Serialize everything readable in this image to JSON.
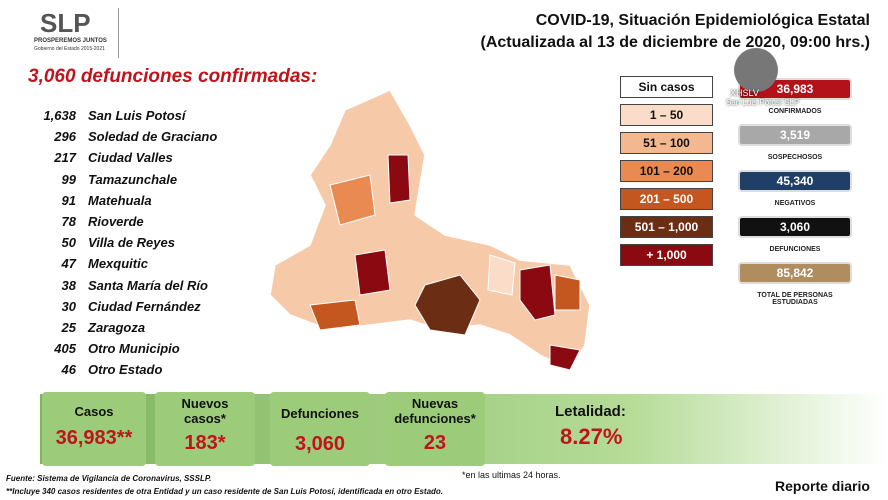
{
  "header": {
    "logo": "SLP",
    "motto": "PROSPEREMOS JUNTOS",
    "government": "Gobierno del Estado 2015-2021",
    "title": "COVID-19, Situación Epidemiológica Estatal",
    "subtitle": "(Actualizada al 13 de diciembre de 2020, 09:00 hrs.)"
  },
  "watermark": {
    "channel": "XHSLV",
    "place": "San Luis Potosí SLP"
  },
  "deaths": {
    "title": "3,060 defunciones confirmadas:",
    "rows": [
      [
        "1,638",
        "San Luis Potosí"
      ],
      [
        "296",
        "Soledad de Graciano"
      ],
      [
        "217",
        "Ciudad Valles"
      ],
      [
        "99",
        "Tamazunchale"
      ],
      [
        "91",
        "Matehuala"
      ],
      [
        "78",
        "Rioverde"
      ],
      [
        "50",
        "Villa de Reyes"
      ],
      [
        "47",
        "Mexquitic"
      ],
      [
        "38",
        "Santa María del Río"
      ],
      [
        "30",
        "Ciudad Fernández"
      ],
      [
        "25",
        "Zaragoza"
      ],
      [
        "405",
        "Otro Municipio"
      ],
      [
        "46",
        "Otro Estado"
      ]
    ]
  },
  "legend": [
    {
      "label": "Sin casos",
      "color": "#ffffff"
    },
    {
      "label": "1 – 50",
      "color": "#fadcc8"
    },
    {
      "label": "51 – 100",
      "color": "#f3b890"
    },
    {
      "label": "101 – 200",
      "color": "#e98a52"
    },
    {
      "label": "201 – 500",
      "color": "#c4561f"
    },
    {
      "label": "501 – 1,000",
      "color": "#6b2e14"
    },
    {
      "label": "+ 1,000",
      "color": "#8b0a12"
    }
  ],
  "stats": [
    {
      "value": "36,983",
      "label": "CONFIRMADOS",
      "color": "#b3121b"
    },
    {
      "value": "3,519",
      "label": "SOSPECHOSOS",
      "color": "#a8a8a8"
    },
    {
      "value": "45,340",
      "label": "NEGATIVOS",
      "color": "#1f3f66"
    },
    {
      "value": "3,060",
      "label": "DEFUNCIONES",
      "color": "#111111"
    },
    {
      "value": "85,842",
      "label": "TOTAL DE PERSONAS ESTUDIADAS",
      "color": "#b08d5e"
    }
  ],
  "summary": {
    "cases": {
      "label": "Casos",
      "value": "36,983**"
    },
    "new_cases": {
      "label": "Nuevos casos*",
      "value": "183*"
    },
    "deaths": {
      "label": "Defunciones",
      "value": "3,060"
    },
    "new_deaths": {
      "label": "Nuevas defunciones*",
      "value": "23"
    },
    "lethality": {
      "label": "Letalidad:",
      "value": "8.27%"
    }
  },
  "footer": {
    "note": "*en las ultimas 24 horas.",
    "source": "Fuente: Sistema de Vigilancia de Coronavirus, SSSLP.",
    "footnote": "**Incluye 340 casos residentes de otra Entidad y un caso residente de San Luis Potosí, identificada en otro Estado.",
    "report": "Reporte diario"
  }
}
